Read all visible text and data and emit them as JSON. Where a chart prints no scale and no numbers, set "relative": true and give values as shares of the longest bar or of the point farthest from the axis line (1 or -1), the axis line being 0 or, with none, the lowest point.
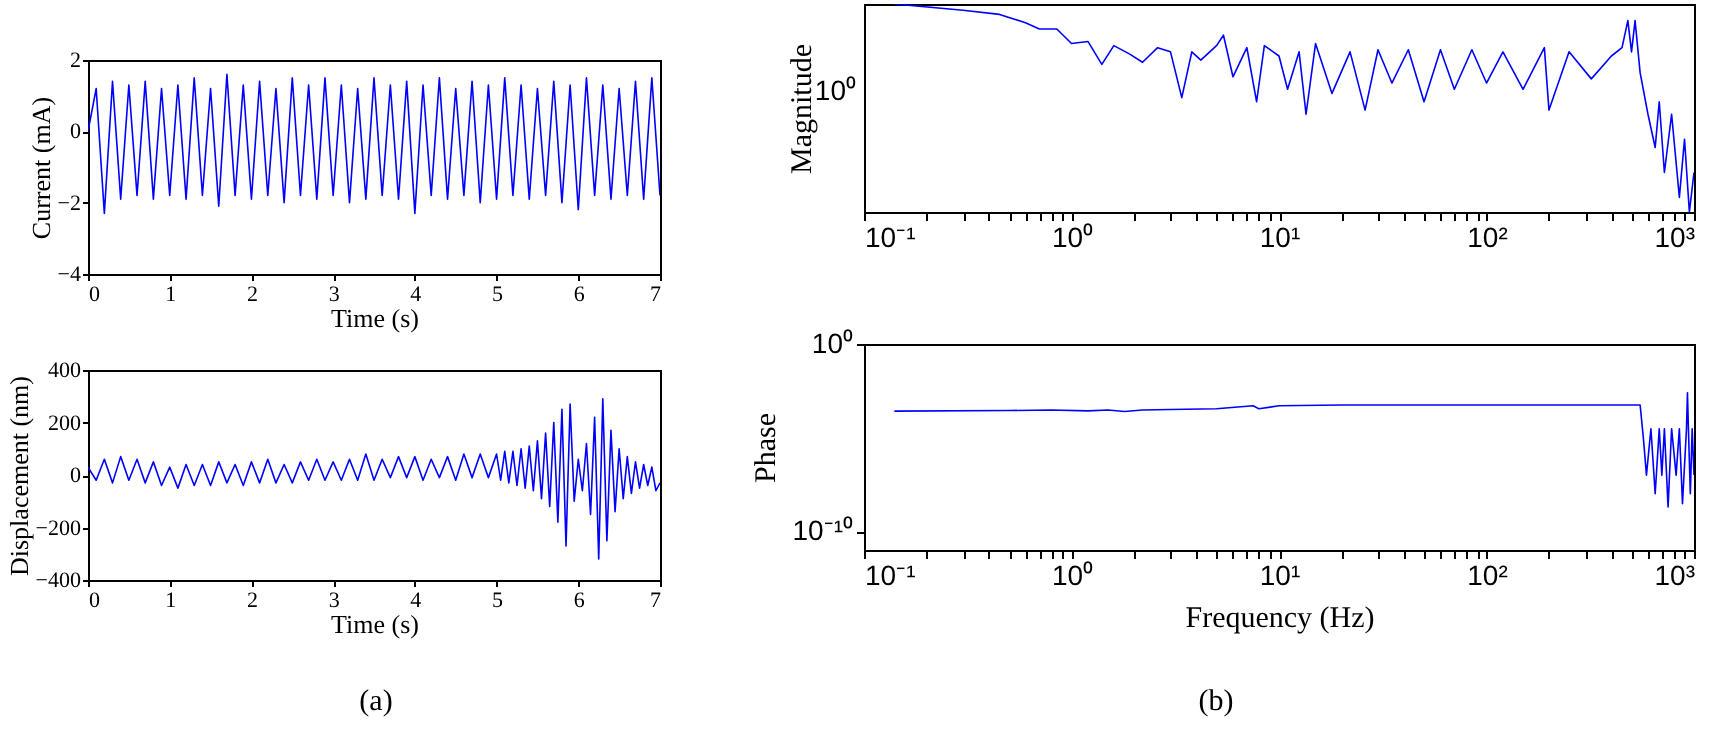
{
  "chart_data": [
    {
      "type": "line",
      "xlabel": "Time (s)",
      "ylabel": "Current (mA)",
      "xlim": [
        0,
        7
      ],
      "ylim": [
        -4,
        2
      ],
      "xticks": [
        0,
        1,
        2,
        3,
        4,
        5,
        6,
        7
      ],
      "yticks": [
        -4,
        -2,
        0,
        2
      ],
      "series": [
        {
          "color": "#0000ff",
          "x": [
            0,
            0.1,
            0.2,
            0.3,
            0.4,
            0.5,
            0.6,
            0.7,
            0.8,
            0.9,
            1,
            1.1,
            1.2,
            1.3,
            1.4,
            1.5,
            1.6,
            1.7,
            1.8,
            1.9,
            2,
            2.1,
            2.2,
            2.3,
            2.4,
            2.5,
            2.6,
            2.7,
            2.8,
            2.9,
            3,
            3.1,
            3.2,
            3.3,
            3.4,
            3.5,
            3.6,
            3.7,
            3.8,
            3.9,
            4,
            4.1,
            4.2,
            4.3,
            4.4,
            4.5,
            4.6,
            4.7,
            4.8,
            4.9,
            5,
            5.1,
            5.2,
            5.3,
            5.4,
            5.5,
            5.6,
            5.7,
            5.8,
            5.9,
            6,
            6.1,
            6.2,
            6.3,
            6.4,
            6.5,
            6.6,
            6.7,
            6.8,
            6.9,
            7
          ],
          "values": [
            0,
            1.2,
            -2.3,
            1.4,
            -1.9,
            1.3,
            -1.8,
            1.4,
            -1.9,
            1.2,
            -1.8,
            1.3,
            -1.9,
            1.5,
            -1.8,
            1.2,
            -2.1,
            1.6,
            -1.8,
            1.3,
            -1.9,
            1.4,
            -1.8,
            1.2,
            -2.0,
            1.5,
            -1.8,
            1.3,
            -1.9,
            1.5,
            -1.8,
            1.3,
            -2.0,
            1.2,
            -1.9,
            1.5,
            -1.8,
            1.3,
            -1.9,
            1.4,
            -2.3,
            1.3,
            -1.8,
            1.5,
            -1.9,
            1.2,
            -1.8,
            1.4,
            -2.0,
            1.3,
            -1.9,
            1.5,
            -1.8,
            1.3,
            -1.9,
            1.2,
            -1.8,
            1.4,
            -2.0,
            1.3,
            -2.2,
            1.5,
            -1.8,
            1.3,
            -1.9,
            1.2,
            -1.8,
            1.4,
            -1.9,
            1.5,
            -1.8
          ]
        }
      ]
    },
    {
      "type": "line",
      "xlabel": "Time (s)",
      "ylabel": "Displacement (nm)",
      "xlim": [
        0,
        7
      ],
      "ylim": [
        -400,
        400
      ],
      "xticks": [
        0,
        1,
        2,
        3,
        4,
        5,
        6,
        7
      ],
      "yticks": [
        -400,
        -200,
        0,
        200,
        400
      ],
      "annotations": [
        "(a)"
      ],
      "series": [
        {
          "color": "#0000ff",
          "x": [
            0,
            0.1,
            0.2,
            0.3,
            0.4,
            0.5,
            0.6,
            0.7,
            0.8,
            0.9,
            1,
            1.1,
            1.2,
            1.3,
            1.4,
            1.5,
            1.6,
            1.7,
            1.8,
            1.9,
            2,
            2.1,
            2.2,
            2.3,
            2.4,
            2.5,
            2.6,
            2.7,
            2.8,
            2.9,
            3,
            3.1,
            3.2,
            3.3,
            3.4,
            3.5,
            3.6,
            3.7,
            3.8,
            3.9,
            4,
            4.1,
            4.2,
            4.3,
            4.4,
            4.5,
            4.6,
            4.7,
            4.8,
            4.9,
            5,
            5.05,
            5.1,
            5.15,
            5.2,
            5.25,
            5.3,
            5.35,
            5.4,
            5.45,
            5.5,
            5.55,
            5.6,
            5.65,
            5.7,
            5.75,
            5.8,
            5.85,
            5.9,
            5.95,
            6,
            6.05,
            6.1,
            6.15,
            6.2,
            6.25,
            6.3,
            6.35,
            6.4,
            6.45,
            6.5,
            6.55,
            6.6,
            6.65,
            6.7,
            6.75,
            6.8,
            6.85,
            6.9,
            6.95,
            7
          ],
          "values": [
            30,
            -20,
            60,
            -30,
            70,
            -20,
            60,
            -30,
            50,
            -40,
            30,
            -50,
            40,
            -40,
            40,
            -40,
            50,
            -30,
            40,
            -40,
            50,
            -30,
            60,
            -30,
            40,
            -30,
            50,
            -20,
            60,
            -20,
            50,
            -20,
            60,
            -20,
            80,
            -20,
            60,
            -10,
            70,
            -10,
            70,
            -20,
            60,
            -10,
            70,
            -20,
            80,
            -10,
            80,
            -10,
            80,
            -20,
            90,
            -30,
            90,
            -40,
            100,
            -50,
            110,
            -60,
            130,
            -90,
            160,
            -120,
            200,
            -180,
            250,
            -270,
            270,
            -100,
            60,
            -60,
            120,
            -150,
            220,
            -320,
            290,
            -250,
            170,
            -140,
            100,
            -90,
            70,
            -70,
            50,
            -50,
            40,
            -40,
            30,
            -60,
            -30
          ]
        }
      ]
    },
    {
      "type": "line",
      "ylabel": "Magnitude",
      "relative": true,
      "log": "x",
      "xlim": [
        0.1,
        1000
      ],
      "xticks": [
        {
          "value": 0.1,
          "label": "10⁻¹"
        },
        {
          "value": 0.2,
          "label": null
        },
        {
          "value": 0.3,
          "label": null
        },
        {
          "value": 0.4,
          "label": null
        },
        {
          "value": 0.5,
          "label": null
        },
        {
          "value": 0.6,
          "label": null
        },
        {
          "value": 0.7,
          "label": null
        },
        {
          "value": 0.8,
          "label": null
        },
        {
          "value": 0.9,
          "label": null
        },
        {
          "value": 1,
          "label": "10⁰"
        },
        {
          "value": 2,
          "label": null
        },
        {
          "value": 3,
          "label": null
        },
        {
          "value": 4,
          "label": null
        },
        {
          "value": 5,
          "label": null
        },
        {
          "value": 6,
          "label": null
        },
        {
          "value": 7,
          "label": null
        },
        {
          "value": 8,
          "label": null
        },
        {
          "value": 9,
          "label": null
        },
        {
          "value": 10,
          "label": "10¹"
        },
        {
          "value": 20,
          "label": null
        },
        {
          "value": 30,
          "label": null
        },
        {
          "value": 40,
          "label": null
        },
        {
          "value": 50,
          "label": null
        },
        {
          "value": 60,
          "label": null
        },
        {
          "value": 70,
          "label": null
        },
        {
          "value": 80,
          "label": null
        },
        {
          "value": 90,
          "label": null
        },
        {
          "value": 100,
          "label": "10²"
        },
        {
          "value": 200,
          "label": null
        },
        {
          "value": 300,
          "label": null
        },
        {
          "value": 400,
          "label": null
        },
        {
          "value": 500,
          "label": null
        },
        {
          "value": 600,
          "label": null
        },
        {
          "value": 700,
          "label": null
        },
        {
          "value": 800,
          "label": null
        },
        {
          "value": 900,
          "label": null
        },
        {
          "value": 1000,
          "label": "10³"
        }
      ],
      "annotations": [
        "10⁰"
      ],
      "series": [
        {
          "color": "#0000ff",
          "x": [
            0.14,
            0.3,
            0.45,
            0.6,
            0.7,
            0.85,
            1,
            1.2,
            1.4,
            1.6,
            1.9,
            2.2,
            2.6,
            3,
            3.4,
            3.8,
            4.2,
            5,
            5.4,
            6,
            7,
            7.8,
            8.5,
            10,
            11,
            12.5,
            13.5,
            15,
            18,
            22,
            26,
            30,
            35,
            42,
            50,
            60,
            70,
            85,
            100,
            120,
            150,
            190,
            200,
            250,
            320,
            400,
            450,
            480,
            500,
            520,
            550,
            600,
            650,
            680,
            720,
            780,
            850,
            900,
            950,
            1000
          ],
          "values": [
            1,
            0.97,
            0.95,
            0.91,
            0.88,
            0.88,
            0.81,
            0.82,
            0.71,
            0.8,
            0.76,
            0.72,
            0.79,
            0.77,
            0.55,
            0.77,
            0.73,
            0.8,
            0.85,
            0.65,
            0.79,
            0.53,
            0.8,
            0.75,
            0.59,
            0.77,
            0.47,
            0.81,
            0.57,
            0.77,
            0.49,
            0.78,
            0.62,
            0.78,
            0.53,
            0.78,
            0.59,
            0.78,
            0.62,
            0.77,
            0.59,
            0.79,
            0.49,
            0.77,
            0.64,
            0.75,
            0.79,
            0.92,
            0.77,
            0.92,
            0.67,
            0.47,
            0.31,
            0.53,
            0.19,
            0.47,
            0.07,
            0.35,
            0,
            0.19
          ]
        }
      ]
    },
    {
      "type": "line",
      "xlabel": "Frequency (Hz)",
      "ylabel": "Phase",
      "log": "xy",
      "xlim": [
        0.1,
        1000
      ],
      "ylim": [
        1e-11,
        1
      ],
      "xticks": [
        {
          "value": 0.1,
          "label": "10⁻¹"
        },
        {
          "value": 0.2,
          "label": null
        },
        {
          "value": 0.3,
          "label": null
        },
        {
          "value": 0.4,
          "label": null
        },
        {
          "value": 0.5,
          "label": null
        },
        {
          "value": 0.6,
          "label": null
        },
        {
          "value": 0.7,
          "label": null
        },
        {
          "value": 0.8,
          "label": null
        },
        {
          "value": 0.9,
          "label": null
        },
        {
          "value": 1,
          "label": "10⁰"
        },
        {
          "value": 2,
          "label": null
        },
        {
          "value": 3,
          "label": null
        },
        {
          "value": 4,
          "label": null
        },
        {
          "value": 5,
          "label": null
        },
        {
          "value": 6,
          "label": null
        },
        {
          "value": 7,
          "label": null
        },
        {
          "value": 8,
          "label": null
        },
        {
          "value": 9,
          "label": null
        },
        {
          "value": 10,
          "label": "10¹"
        },
        {
          "value": 20,
          "label": null
        },
        {
          "value": 30,
          "label": null
        },
        {
          "value": 40,
          "label": null
        },
        {
          "value": 50,
          "label": null
        },
        {
          "value": 60,
          "label": null
        },
        {
          "value": 70,
          "label": null
        },
        {
          "value": 80,
          "label": null
        },
        {
          "value": 90,
          "label": null
        },
        {
          "value": 100,
          "label": "10²"
        },
        {
          "value": 200,
          "label": null
        },
        {
          "value": 300,
          "label": null
        },
        {
          "value": 400,
          "label": null
        },
        {
          "value": 500,
          "label": null
        },
        {
          "value": 600,
          "label": null
        },
        {
          "value": 700,
          "label": null
        },
        {
          "value": 800,
          "label": null
        },
        {
          "value": 900,
          "label": null
        },
        {
          "value": 1000,
          "label": "10³"
        }
      ],
      "yticks": [
        {
          "value": 1e-10,
          "label": "10⁻¹⁰"
        },
        {
          "value": 1,
          "label": "10⁰"
        }
      ],
      "annotations": [
        "(b)"
      ],
      "series": [
        {
          "color": "#0000ff",
          "x": [
            0.14,
            0.5,
            0.8,
            1.2,
            1.5,
            1.8,
            2.2,
            3,
            5,
            7.5,
            8,
            10,
            20,
            50,
            100,
            300,
            550,
            570,
            590,
            620,
            650,
            680,
            700,
            720,
            750,
            780,
            820,
            850,
            880,
            920,
            930,
            940,
            960,
            980,
            1000
          ],
          "values": [
            0.00026,
            0.00028,
            0.0003,
            0.00027,
            0.0003,
            0.00025,
            0.0003,
            0.00032,
            0.00035,
            0.0005,
            0.00035,
            0.0005,
            0.00055,
            0.00055,
            0.00055,
            0.00055,
            0.00055,
            1e-05,
            1e-07,
            3e-05,
            1e-08,
            3e-05,
            1e-07,
            3e-05,
            2e-09,
            3e-05,
            1e-07,
            3e-05,
            3e-09,
            3e-05,
            0.0025,
            3e-05,
            1e-08,
            3e-05,
            1e-07
          ]
        }
      ]
    }
  ]
}
